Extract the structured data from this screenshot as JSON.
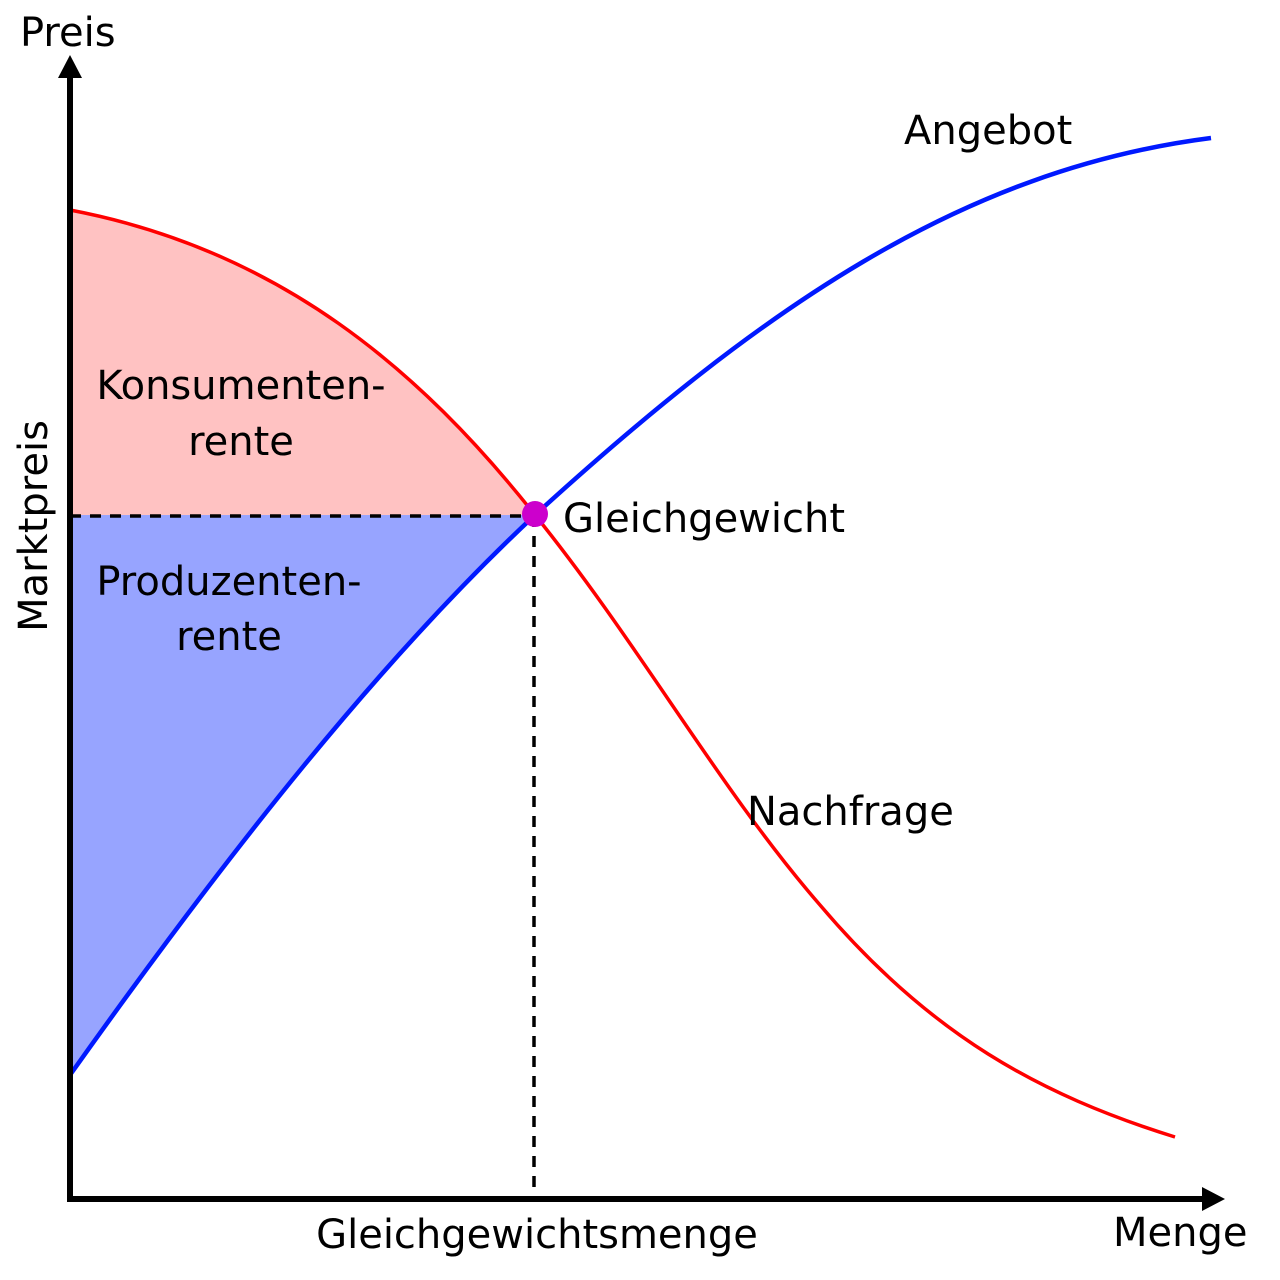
{
  "diagram": {
    "axes": {
      "y_label": "Preis",
      "x_label": "Menge"
    },
    "curves": {
      "supply": {
        "label": "Angebot",
        "color": "#0019ff"
      },
      "demand": {
        "label": "Nachfrage",
        "color": "#ff0000"
      }
    },
    "equilibrium": {
      "label": "Gleichgewicht",
      "color": "#cc00cc",
      "price_label": "Marktpreis",
      "quantity_label": "Gleichgewichtsmenge"
    },
    "areas": {
      "consumer_surplus": {
        "line1": "Konsumenten-",
        "line2": "rente",
        "color": "#ffc2c2"
      },
      "producer_surplus": {
        "line1": "Produzenten-",
        "line2": "rente",
        "color": "#97a4ff"
      }
    }
  }
}
